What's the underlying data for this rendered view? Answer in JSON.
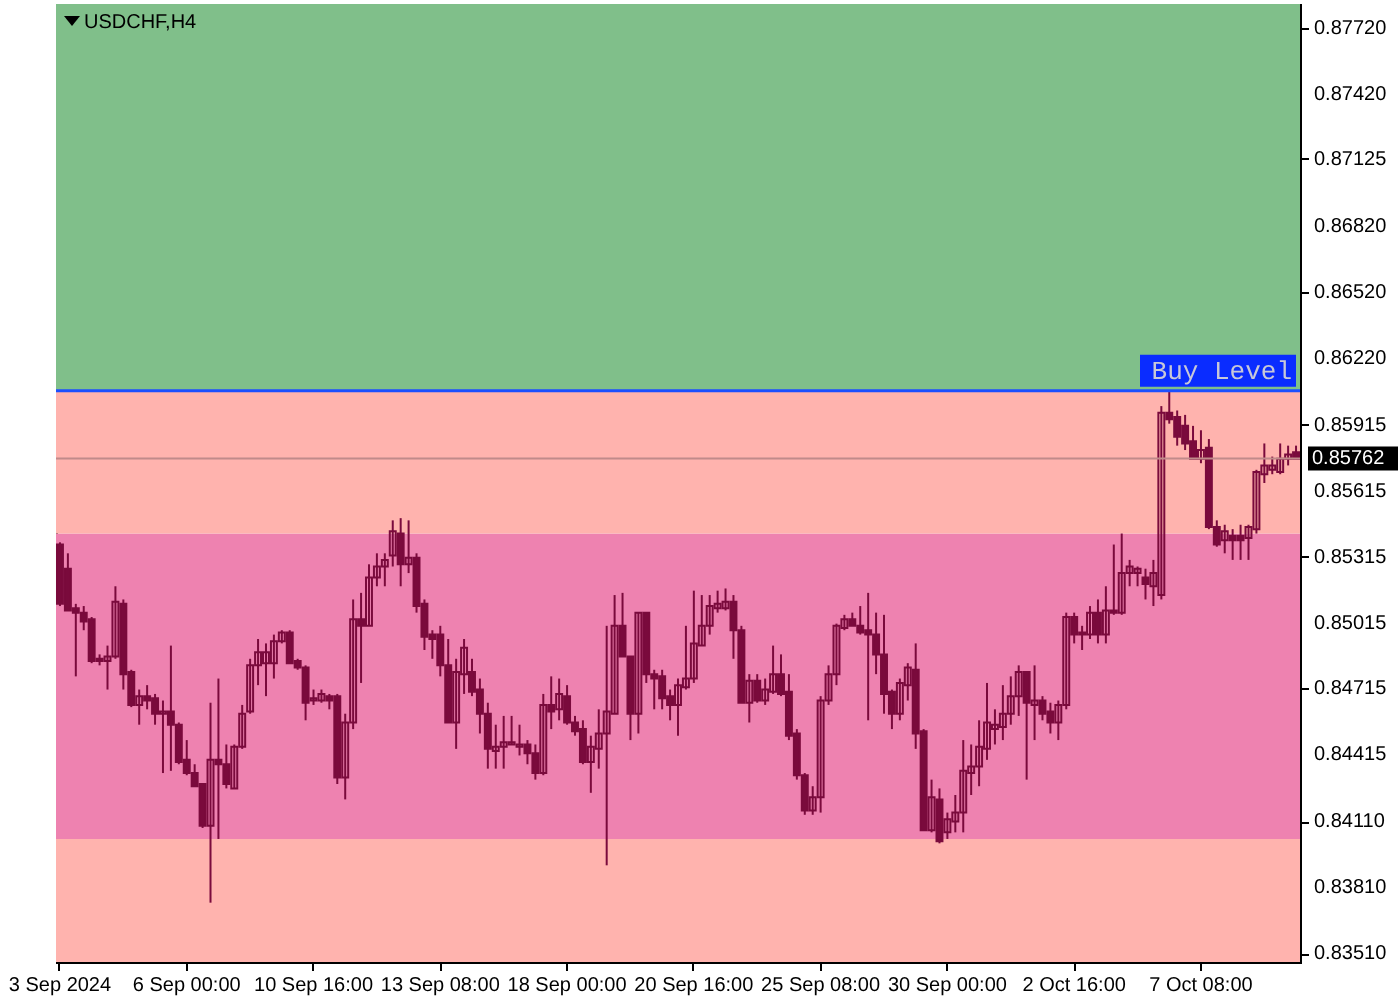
{
  "chart_data": {
    "type": "candlestick",
    "title": "USDCHF,H4",
    "categories": [
      "3 Sep 2024",
      null,
      null,
      null,
      null,
      null,
      null,
      null,
      null,
      null,
      null,
      null,
      null,
      null,
      null,
      null,
      "6 Sep 00:00",
      null,
      null,
      null,
      null,
      null,
      null,
      null,
      null,
      null,
      null,
      null,
      null,
      null,
      null,
      null,
      "10 Sep 16:00",
      null,
      null,
      null,
      null,
      null,
      null,
      null,
      null,
      null,
      null,
      null,
      null,
      null,
      null,
      null,
      "13 Sep 08:00",
      null,
      null,
      null,
      null,
      null,
      null,
      null,
      null,
      null,
      null,
      null,
      null,
      null,
      null,
      null,
      "18 Sep 00:00",
      null,
      null,
      null,
      null,
      null,
      null,
      null,
      null,
      null,
      null,
      null,
      null,
      null,
      null,
      null,
      "20 Sep 16:00",
      null,
      null,
      null,
      null,
      null,
      null,
      null,
      null,
      null,
      null,
      null,
      null,
      null,
      null,
      null,
      "25 Sep 08:00",
      null,
      null,
      null,
      null,
      null,
      null,
      null,
      null,
      null,
      null,
      null,
      null,
      null,
      null,
      null,
      "30 Sep 00:00",
      null,
      null,
      null,
      null,
      null,
      null,
      null,
      null,
      null,
      null,
      null,
      null,
      null,
      null,
      null,
      "2 Oct 16:00",
      null,
      null,
      null,
      null,
      null,
      null,
      null,
      null,
      null,
      null,
      null,
      null,
      null,
      null,
      null,
      "7 Oct 08:00",
      null,
      null,
      null,
      null,
      null,
      null,
      null,
      null,
      null,
      null,
      null,
      null
    ],
    "color": "#7a0a3c",
    "ohlc": [
      [
        0.8537,
        0.8538,
        0.8509,
        0.851
      ],
      [
        0.8526,
        0.8533,
        0.8507,
        0.8507
      ],
      [
        0.8508,
        0.851,
        0.8477,
        0.8506
      ],
      [
        0.8506,
        0.8509,
        0.8498,
        0.8502
      ],
      [
        0.8503,
        0.8504,
        0.8483,
        0.8484
      ],
      [
        0.8485,
        0.8487,
        0.8482,
        0.8484
      ],
      [
        0.8484,
        0.8491,
        0.8471,
        0.8486
      ],
      [
        0.8486,
        0.8518,
        0.8485,
        0.8511
      ],
      [
        0.851,
        0.8512,
        0.8471,
        0.8478
      ],
      [
        0.8479,
        0.848,
        0.8463,
        0.8464
      ],
      [
        0.8464,
        0.8471,
        0.8455,
        0.8468
      ],
      [
        0.8468,
        0.8473,
        0.8462,
        0.8466
      ],
      [
        0.8467,
        0.8469,
        0.8455,
        0.846
      ],
      [
        0.846,
        0.8466,
        0.8433,
        0.8461
      ],
      [
        0.8461,
        0.8491,
        0.8434,
        0.8455
      ],
      [
        0.8455,
        0.8456,
        0.8437,
        0.8438
      ],
      [
        0.8439,
        0.8448,
        0.8432,
        0.8433
      ],
      [
        0.8433,
        0.8437,
        0.8427,
        0.8427
      ],
      [
        0.8428,
        0.8428,
        0.8408,
        0.8409
      ],
      [
        0.8409,
        0.8465,
        0.8374,
        0.8439
      ],
      [
        0.8439,
        0.8476,
        0.8403,
        0.8437
      ],
      [
        0.8437,
        0.8446,
        0.8426,
        0.8428
      ],
      [
        0.8426,
        0.8446,
        0.8426,
        0.8445
      ],
      [
        0.8445,
        0.8464,
        0.8444,
        0.846
      ],
      [
        0.8461,
        0.8485,
        0.846,
        0.8482
      ],
      [
        0.8482,
        0.8494,
        0.8473,
        0.8488
      ],
      [
        0.8483,
        0.8492,
        0.8468,
        0.8488
      ],
      [
        0.8483,
        0.8496,
        0.8476,
        0.8493
      ],
      [
        0.8493,
        0.8498,
        0.8492,
        0.8497
      ],
      [
        0.8497,
        0.8498,
        0.8483,
        0.8483
      ],
      [
        0.8484,
        0.8485,
        0.848,
        0.8481
      ],
      [
        0.8481,
        0.8482,
        0.8457,
        0.8465
      ],
      [
        0.8466,
        0.8471,
        0.8464,
        0.8467
      ],
      [
        0.8466,
        0.8471,
        0.8465,
        0.8469
      ],
      [
        0.8468,
        0.8469,
        0.8462,
        0.8466
      ],
      [
        0.8468,
        0.8469,
        0.8428,
        0.8431
      ],
      [
        0.8431,
        0.846,
        0.8421,
        0.8456
      ],
      [
        0.8456,
        0.8512,
        0.8453,
        0.8503
      ],
      [
        0.8503,
        0.8515,
        0.8474,
        0.85
      ],
      [
        0.85,
        0.8528,
        0.85,
        0.8522
      ],
      [
        0.8522,
        0.8533,
        0.8518,
        0.8527
      ],
      [
        0.8527,
        0.8533,
        0.8518,
        0.853
      ],
      [
        0.8532,
        0.8548,
        0.8527,
        0.8543
      ],
      [
        0.8542,
        0.8549,
        0.8518,
        0.8528
      ],
      [
        0.8528,
        0.8548,
        0.8524,
        0.8531
      ],
      [
        0.8531,
        0.8533,
        0.8506,
        0.8509
      ],
      [
        0.851,
        0.8512,
        0.8489,
        0.8495
      ],
      [
        0.8496,
        0.8498,
        0.8485,
        0.8494
      ],
      [
        0.8496,
        0.85,
        0.8477,
        0.8482
      ],
      [
        0.8482,
        0.8494,
        0.8456,
        0.8456
      ],
      [
        0.8456,
        0.8485,
        0.8444,
        0.8479
      ],
      [
        0.8478,
        0.8494,
        0.8469,
        0.849
      ],
      [
        0.8479,
        0.8485,
        0.8468,
        0.847
      ],
      [
        0.8471,
        0.8476,
        0.8451,
        0.846
      ],
      [
        0.846,
        0.8465,
        0.8435,
        0.8444
      ],
      [
        0.8443,
        0.8455,
        0.8435,
        0.8445
      ],
      [
        0.8445,
        0.8459,
        0.8435,
        0.8447
      ],
      [
        0.8446,
        0.8459,
        0.8446,
        0.8447
      ],
      [
        0.8445,
        0.8455,
        0.8441,
        0.8446
      ],
      [
        0.8446,
        0.8448,
        0.8437,
        0.8442
      ],
      [
        0.8442,
        0.8446,
        0.843,
        0.8433
      ],
      [
        0.8433,
        0.8469,
        0.8432,
        0.8464
      ],
      [
        0.8464,
        0.8477,
        0.8453,
        0.8461
      ],
      [
        0.8462,
        0.8476,
        0.8457,
        0.8469
      ],
      [
        0.8468,
        0.8473,
        0.8455,
        0.8456
      ],
      [
        0.8456,
        0.8459,
        0.845,
        0.8452
      ],
      [
        0.8453,
        0.8457,
        0.8437,
        0.8438
      ],
      [
        0.8438,
        0.845,
        0.8424,
        0.8445
      ],
      [
        0.8444,
        0.8462,
        0.8435,
        0.8451
      ],
      [
        0.8451,
        0.85,
        0.8391,
        0.8461
      ],
      [
        0.846,
        0.8514,
        0.846,
        0.85
      ],
      [
        0.85,
        0.8515,
        0.8486,
        0.8486
      ],
      [
        0.8486,
        0.8486,
        0.8448,
        0.846
      ],
      [
        0.846,
        0.8506,
        0.8451,
        0.8506
      ],
      [
        0.8506,
        0.8506,
        0.8474,
        0.8478
      ],
      [
        0.8478,
        0.848,
        0.8462,
        0.8476
      ],
      [
        0.8477,
        0.848,
        0.8462,
        0.8467
      ],
      [
        0.8468,
        0.8471,
        0.8457,
        0.8464
      ],
      [
        0.8464,
        0.8476,
        0.845,
        0.8473
      ],
      [
        0.8472,
        0.85,
        0.8471,
        0.8476
      ],
      [
        0.8476,
        0.8516,
        0.8474,
        0.8492
      ],
      [
        0.8491,
        0.8514,
        0.8491,
        0.85
      ],
      [
        0.85,
        0.8514,
        0.8496,
        0.8509
      ],
      [
        0.8508,
        0.8516,
        0.8506,
        0.851
      ],
      [
        0.8508,
        0.8517,
        0.8507,
        0.8511
      ],
      [
        0.8511,
        0.8514,
        0.8485,
        0.8498
      ],
      [
        0.8498,
        0.85,
        0.8465,
        0.8465
      ],
      [
        0.8465,
        0.8478,
        0.8456,
        0.8475
      ],
      [
        0.8475,
        0.8478,
        0.8465,
        0.8466
      ],
      [
        0.8466,
        0.8476,
        0.8464,
        0.8471
      ],
      [
        0.847,
        0.8491,
        0.8469,
        0.8478
      ],
      [
        0.8478,
        0.8487,
        0.8468,
        0.8469
      ],
      [
        0.847,
        0.8478,
        0.8448,
        0.845
      ],
      [
        0.8451,
        0.8453,
        0.843,
        0.8432
      ],
      [
        0.8432,
        0.8433,
        0.8414,
        0.8416
      ],
      [
        0.8416,
        0.8427,
        0.8414,
        0.8422
      ],
      [
        0.8422,
        0.8468,
        0.8415,
        0.8466
      ],
      [
        0.8466,
        0.8482,
        0.8464,
        0.8478
      ],
      [
        0.8478,
        0.8501,
        0.8473,
        0.85
      ],
      [
        0.8499,
        0.8505,
        0.8498,
        0.8503
      ],
      [
        0.8503,
        0.8506,
        0.85,
        0.85
      ],
      [
        0.85,
        0.8509,
        0.8496,
        0.8497
      ],
      [
        0.8498,
        0.8515,
        0.8457,
        0.8496
      ],
      [
        0.8496,
        0.8506,
        0.8478,
        0.8487
      ],
      [
        0.8487,
        0.8505,
        0.846,
        0.8469
      ],
      [
        0.847,
        0.8471,
        0.8453,
        0.846
      ],
      [
        0.846,
        0.8476,
        0.8457,
        0.8474
      ],
      [
        0.8473,
        0.8483,
        0.8466,
        0.8481
      ],
      [
        0.848,
        0.8492,
        0.8444,
        0.8451
      ],
      [
        0.8452,
        0.8453,
        0.8407,
        0.8407
      ],
      [
        0.8407,
        0.843,
        0.8406,
        0.8422
      ],
      [
        0.8421,
        0.8426,
        0.8401,
        0.8402
      ],
      [
        0.8406,
        0.8415,
        0.8403,
        0.8412
      ],
      [
        0.8411,
        0.8423,
        0.8406,
        0.8415
      ],
      [
        0.8415,
        0.8448,
        0.8406,
        0.8434
      ],
      [
        0.8433,
        0.8446,
        0.8423,
        0.8436
      ],
      [
        0.8436,
        0.8457,
        0.8427,
        0.8445
      ],
      [
        0.8444,
        0.8474,
        0.8439,
        0.8456
      ],
      [
        0.8453,
        0.8462,
        0.8446,
        0.8455
      ],
      [
        0.8454,
        0.8473,
        0.8448,
        0.846
      ],
      [
        0.846,
        0.8477,
        0.8455,
        0.8468
      ],
      [
        0.8468,
        0.8482,
        0.8459,
        0.8479
      ],
      [
        0.8479,
        0.8479,
        0.843,
        0.8465
      ],
      [
        0.8464,
        0.8482,
        0.8448,
        0.8466
      ],
      [
        0.8466,
        0.8468,
        0.8457,
        0.846
      ],
      [
        0.8461,
        0.8465,
        0.8451,
        0.8456
      ],
      [
        0.8456,
        0.8466,
        0.8448,
        0.8464
      ],
      [
        0.8464,
        0.8506,
        0.8462,
        0.8504
      ],
      [
        0.8504,
        0.8506,
        0.8492,
        0.8496
      ],
      [
        0.8496,
        0.85,
        0.8489,
        0.8497
      ],
      [
        0.8496,
        0.8509,
        0.8494,
        0.8506
      ],
      [
        0.8506,
        0.8512,
        0.8492,
        0.8496
      ],
      [
        0.8496,
        0.8518,
        0.8492,
        0.8507
      ],
      [
        0.8507,
        0.8537,
        0.8505,
        0.8506
      ],
      [
        0.8506,
        0.8542,
        0.8505,
        0.8524
      ],
      [
        0.8524,
        0.853,
        0.8518,
        0.8527
      ],
      [
        0.8524,
        0.8527,
        0.8518,
        0.8526
      ],
      [
        0.8522,
        0.8526,
        0.8512,
        0.8519
      ],
      [
        0.8518,
        0.853,
        0.8509,
        0.8524
      ],
      [
        0.8514,
        0.86,
        0.8512,
        0.8597
      ],
      [
        0.8597,
        0.8607,
        0.8592,
        0.8594
      ],
      [
        0.8595,
        0.8598,
        0.8582,
        0.8586
      ],
      [
        0.8591,
        0.8596,
        0.858,
        0.8583
      ],
      [
        0.8584,
        0.8591,
        0.8576,
        0.8576
      ],
      [
        0.8576,
        0.8589,
        0.8574,
        0.858
      ],
      [
        0.8581,
        0.8585,
        0.8544,
        0.8545
      ],
      [
        0.8545,
        0.8548,
        0.8536,
        0.8537
      ],
      [
        0.8539,
        0.8546,
        0.8533,
        0.8543
      ],
      [
        0.8541,
        0.8544,
        0.853,
        0.8539
      ],
      [
        0.8541,
        0.8546,
        0.853,
        0.8539
      ],
      [
        0.854,
        0.8546,
        0.853,
        0.8545
      ],
      [
        0.8544,
        0.8571,
        0.8542,
        0.857
      ],
      [
        0.8569,
        0.8583,
        0.8565,
        0.8573
      ],
      [
        0.8571,
        0.8577,
        0.8569,
        0.8573
      ],
      [
        0.857,
        0.8583,
        0.8569,
        0.8576
      ],
      [
        0.8576,
        0.8582,
        0.8573,
        0.8578
      ],
      [
        0.8579,
        0.8582,
        0.8576,
        0.8576
      ]
    ],
    "ylim": [
      0.8347,
      0.8783
    ],
    "yticks": [
      {
        "value": 0.8772,
        "label": "0.87720"
      },
      {
        "value": 0.8742,
        "label": "0.87420"
      },
      {
        "value": 0.87125,
        "label": "0.87125"
      },
      {
        "value": 0.8682,
        "label": "0.86820"
      },
      {
        "value": 0.8652,
        "label": "0.86520"
      },
      {
        "value": 0.8622,
        "label": "0.86220"
      },
      {
        "value": 0.85915,
        "label": "0.85915"
      },
      {
        "value": 0.85615,
        "label": "0.85615"
      },
      {
        "value": 0.85315,
        "label": "0.85315"
      },
      {
        "value": 0.85015,
        "label": "0.85015"
      },
      {
        "value": 0.84715,
        "label": "0.84715"
      },
      {
        "value": 0.84415,
        "label": "0.84415"
      },
      {
        "value": 0.8411,
        "label": "0.84110"
      },
      {
        "value": 0.8381,
        "label": "0.83810"
      },
      {
        "value": 0.8351,
        "label": "0.83510"
      }
    ],
    "bands": [
      {
        "axis": "y",
        "from": 0.8347,
        "to": 0.8403,
        "color": "#ffb3ae"
      },
      {
        "axis": "y",
        "from": 0.8403,
        "to": 0.8542,
        "color": "#ee82b0"
      },
      {
        "axis": "y",
        "from": 0.8542,
        "to": 0.8607,
        "color": "#ffb3ae"
      },
      {
        "axis": "y",
        "from": 0.8607,
        "to": 0.8783,
        "color": "#80bf8a"
      }
    ],
    "ref_lines": [
      {
        "axis": "y",
        "value": 0.8607,
        "label": "Buy Level",
        "color": "#1c4fff"
      },
      {
        "axis": "y",
        "value": 0.85762,
        "label": "0.85762",
        "color": "#c08a8a"
      }
    ]
  }
}
